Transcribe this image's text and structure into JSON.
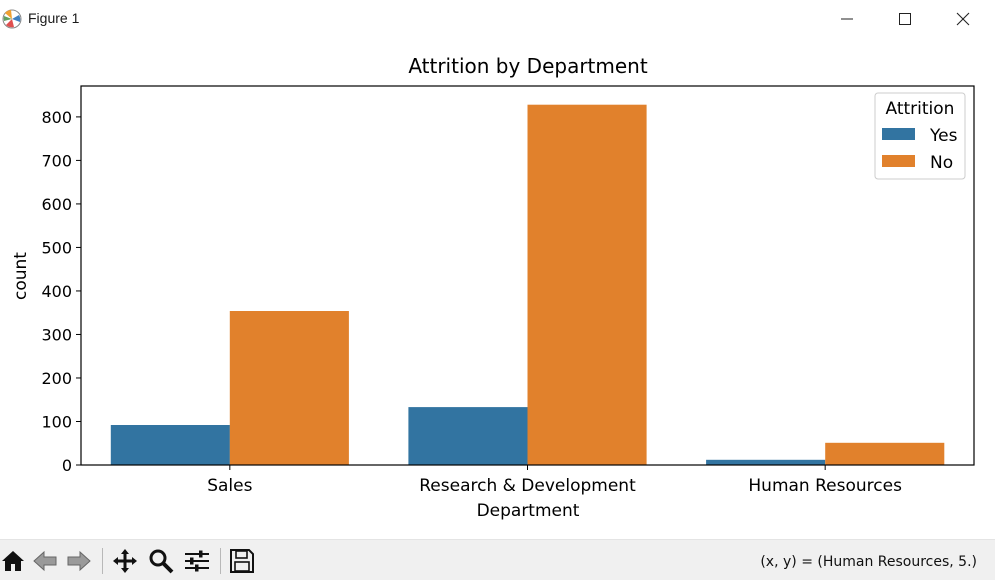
{
  "window": {
    "title": "Figure 1"
  },
  "icons": {
    "app": "matplotlib-icon",
    "minimize": "minimize-icon",
    "maximize": "maximize-icon",
    "close": "close-icon",
    "home": "home-icon",
    "back": "back-arrow-icon",
    "forward": "forward-arrow-icon",
    "pan": "pan-move-icon",
    "zoom": "zoom-magnifier-icon",
    "configure": "configure-subplots-icon",
    "save": "save-floppy-icon"
  },
  "toolbar": {
    "coordinates": "(x, y) = (Human Resources, 5.)"
  },
  "colors": {
    "yes": "#3274a1",
    "no": "#e1812c"
  },
  "chart_data": {
    "type": "bar",
    "title": "Attrition by Department",
    "xlabel": "Department",
    "ylabel": "count",
    "categories": [
      "Sales",
      "Research & Development",
      "Human Resources"
    ],
    "series": [
      {
        "name": "Yes",
        "values": [
          92,
          133,
          12
        ]
      },
      {
        "name": "No",
        "values": [
          354,
          828,
          51
        ]
      }
    ],
    "ylim": [
      0,
      871
    ],
    "yticks": [
      0,
      100,
      200,
      300,
      400,
      500,
      600,
      700,
      800
    ],
    "legend": {
      "title": "Attrition",
      "placement": "top-right"
    },
    "grid": false
  }
}
